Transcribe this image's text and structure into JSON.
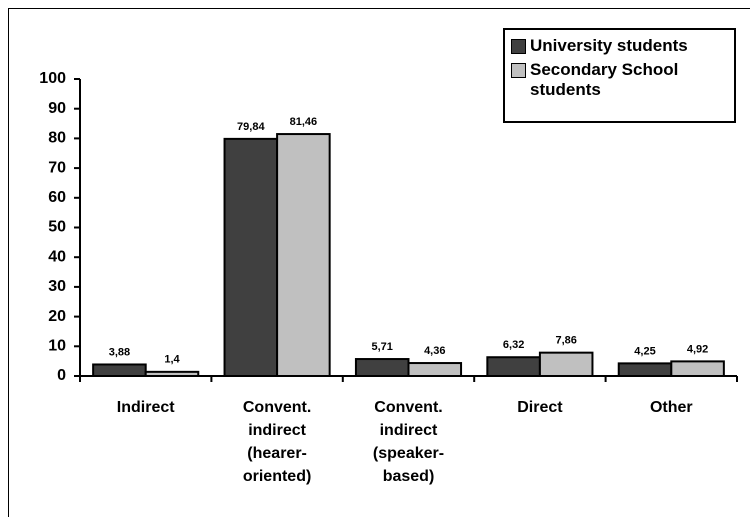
{
  "chart_data": {
    "type": "bar",
    "categories": [
      [
        "Indirect"
      ],
      [
        "Convent.",
        "indirect",
        "(hearer-",
        "oriented)"
      ],
      [
        "Convent.",
        "indirect",
        "(speaker-",
        "based)"
      ],
      [
        "Direct"
      ],
      [
        "Other"
      ]
    ],
    "series": [
      {
        "name": "University students",
        "color": "#404040",
        "values": [
          3.88,
          79.84,
          5.71,
          6.32,
          4.25
        ],
        "value_labels": [
          "3,88",
          "79,84",
          "5,71",
          "6,32",
          "4,25"
        ]
      },
      {
        "name": "Secondary School students",
        "color": "#c0c0c0",
        "values": [
          1.4,
          81.46,
          4.36,
          7.86,
          4.92
        ],
        "value_labels": [
          "1,4",
          "81,46",
          "4,36",
          "7,86",
          "4,92"
        ]
      }
    ],
    "ylim": [
      0,
      100
    ],
    "yticks": [
      0,
      10,
      20,
      30,
      40,
      50,
      60,
      70,
      80,
      90,
      100
    ],
    "legend": "top-right"
  }
}
